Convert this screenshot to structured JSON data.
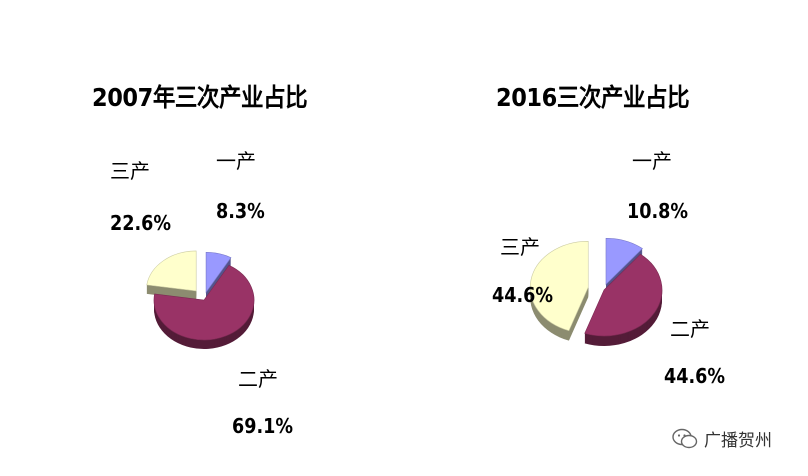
{
  "chart_data": [
    {
      "type": "pie",
      "title": "2007年三次产业占比",
      "slices": [
        {
          "name": "一产",
          "value": 8.3,
          "label": "8.3%",
          "color": "#9999ff"
        },
        {
          "name": "二产",
          "value": 69.1,
          "label": "69.1%",
          "color": "#993366"
        },
        {
          "name": "三产",
          "value": 22.6,
          "label": "22.6%",
          "color": "#ffffcc"
        }
      ]
    },
    {
      "type": "pie",
      "title": "2016三次产业占比",
      "slices": [
        {
          "name": "一产",
          "value": 10.8,
          "label": "10.8%",
          "color": "#9999ff"
        },
        {
          "name": "二产",
          "value": 44.6,
          "label": "44.6%",
          "color": "#993366"
        },
        {
          "name": "三产",
          "value": 44.6,
          "label": "44.6%",
          "color": "#ffffcc"
        }
      ]
    }
  ],
  "watermark": {
    "text": "广播贺州",
    "icon": "wechat-icon"
  }
}
